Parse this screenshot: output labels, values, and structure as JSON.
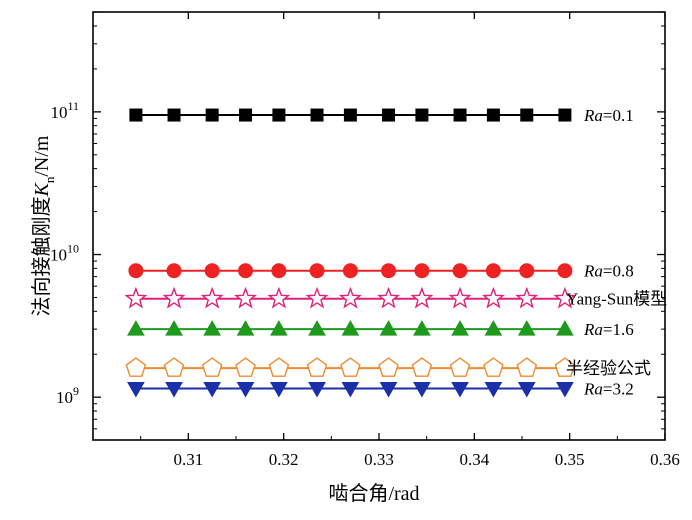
{
  "chart_data": {
    "type": "line",
    "title": "",
    "xlabel": "啮合角/rad",
    "ylabel": "法向接触刚度K_n/N/m",
    "ylabel_main": "法向接触刚度",
    "ylabel_symbol": "K",
    "ylabel_subscript": "n",
    "ylabel_unit": "/N/m",
    "xlim": [
      0.3,
      0.36
    ],
    "ylim_log10": [
      8.7,
      11.7
    ],
    "yscale": "log",
    "grid": false,
    "legend": "inline-right",
    "xticks": [
      0.31,
      0.32,
      0.33,
      0.34,
      0.35,
      0.36
    ],
    "xtick_labels": [
      "0.31",
      "0.32",
      "0.33",
      "0.34",
      "0.35",
      "0.36"
    ],
    "yticks": [
      {
        "exponent": 9,
        "base": "10",
        "sup": "9"
      },
      {
        "exponent": 10,
        "base": "10",
        "sup": "10"
      },
      {
        "exponent": 11,
        "base": "10",
        "sup": "11"
      }
    ],
    "x": [
      0.3045,
      0.3085,
      0.3125,
      0.316,
      0.3195,
      0.3235,
      0.327,
      0.331,
      0.3345,
      0.3385,
      0.342,
      0.3455,
      0.3495
    ],
    "series": [
      {
        "label_italic": "Ra",
        "label_rest": "=0.1",
        "marker": "square",
        "color": "#000000",
        "fill": "#000000",
        "y": 95000000000
      },
      {
        "label_italic": "Ra",
        "label_rest": "=0.8",
        "marker": "circle",
        "color": "#ee2222",
        "fill": "#ee2222",
        "y": 7700000000
      },
      {
        "label_italic": "",
        "label_rest": "Yang-Sun模型",
        "marker": "star",
        "color": "#e0207a",
        "fill": "none",
        "y": 4900000000
      },
      {
        "label_italic": "Ra",
        "label_rest": "=1.6",
        "marker": "triangle-up",
        "color": "#1f9a1f",
        "fill": "#1f9a1f",
        "y": 3000000000
      },
      {
        "label_italic": "",
        "label_rest": "半经验公式",
        "marker": "pentagon",
        "color": "#f08a30",
        "fill": "none",
        "y": 1600000000
      },
      {
        "label_italic": "Ra",
        "label_rest": "=3.2",
        "marker": "triangle-down",
        "color": "#1a2fa8",
        "fill": "#1a2fa8",
        "y": 1150000000
      }
    ]
  }
}
